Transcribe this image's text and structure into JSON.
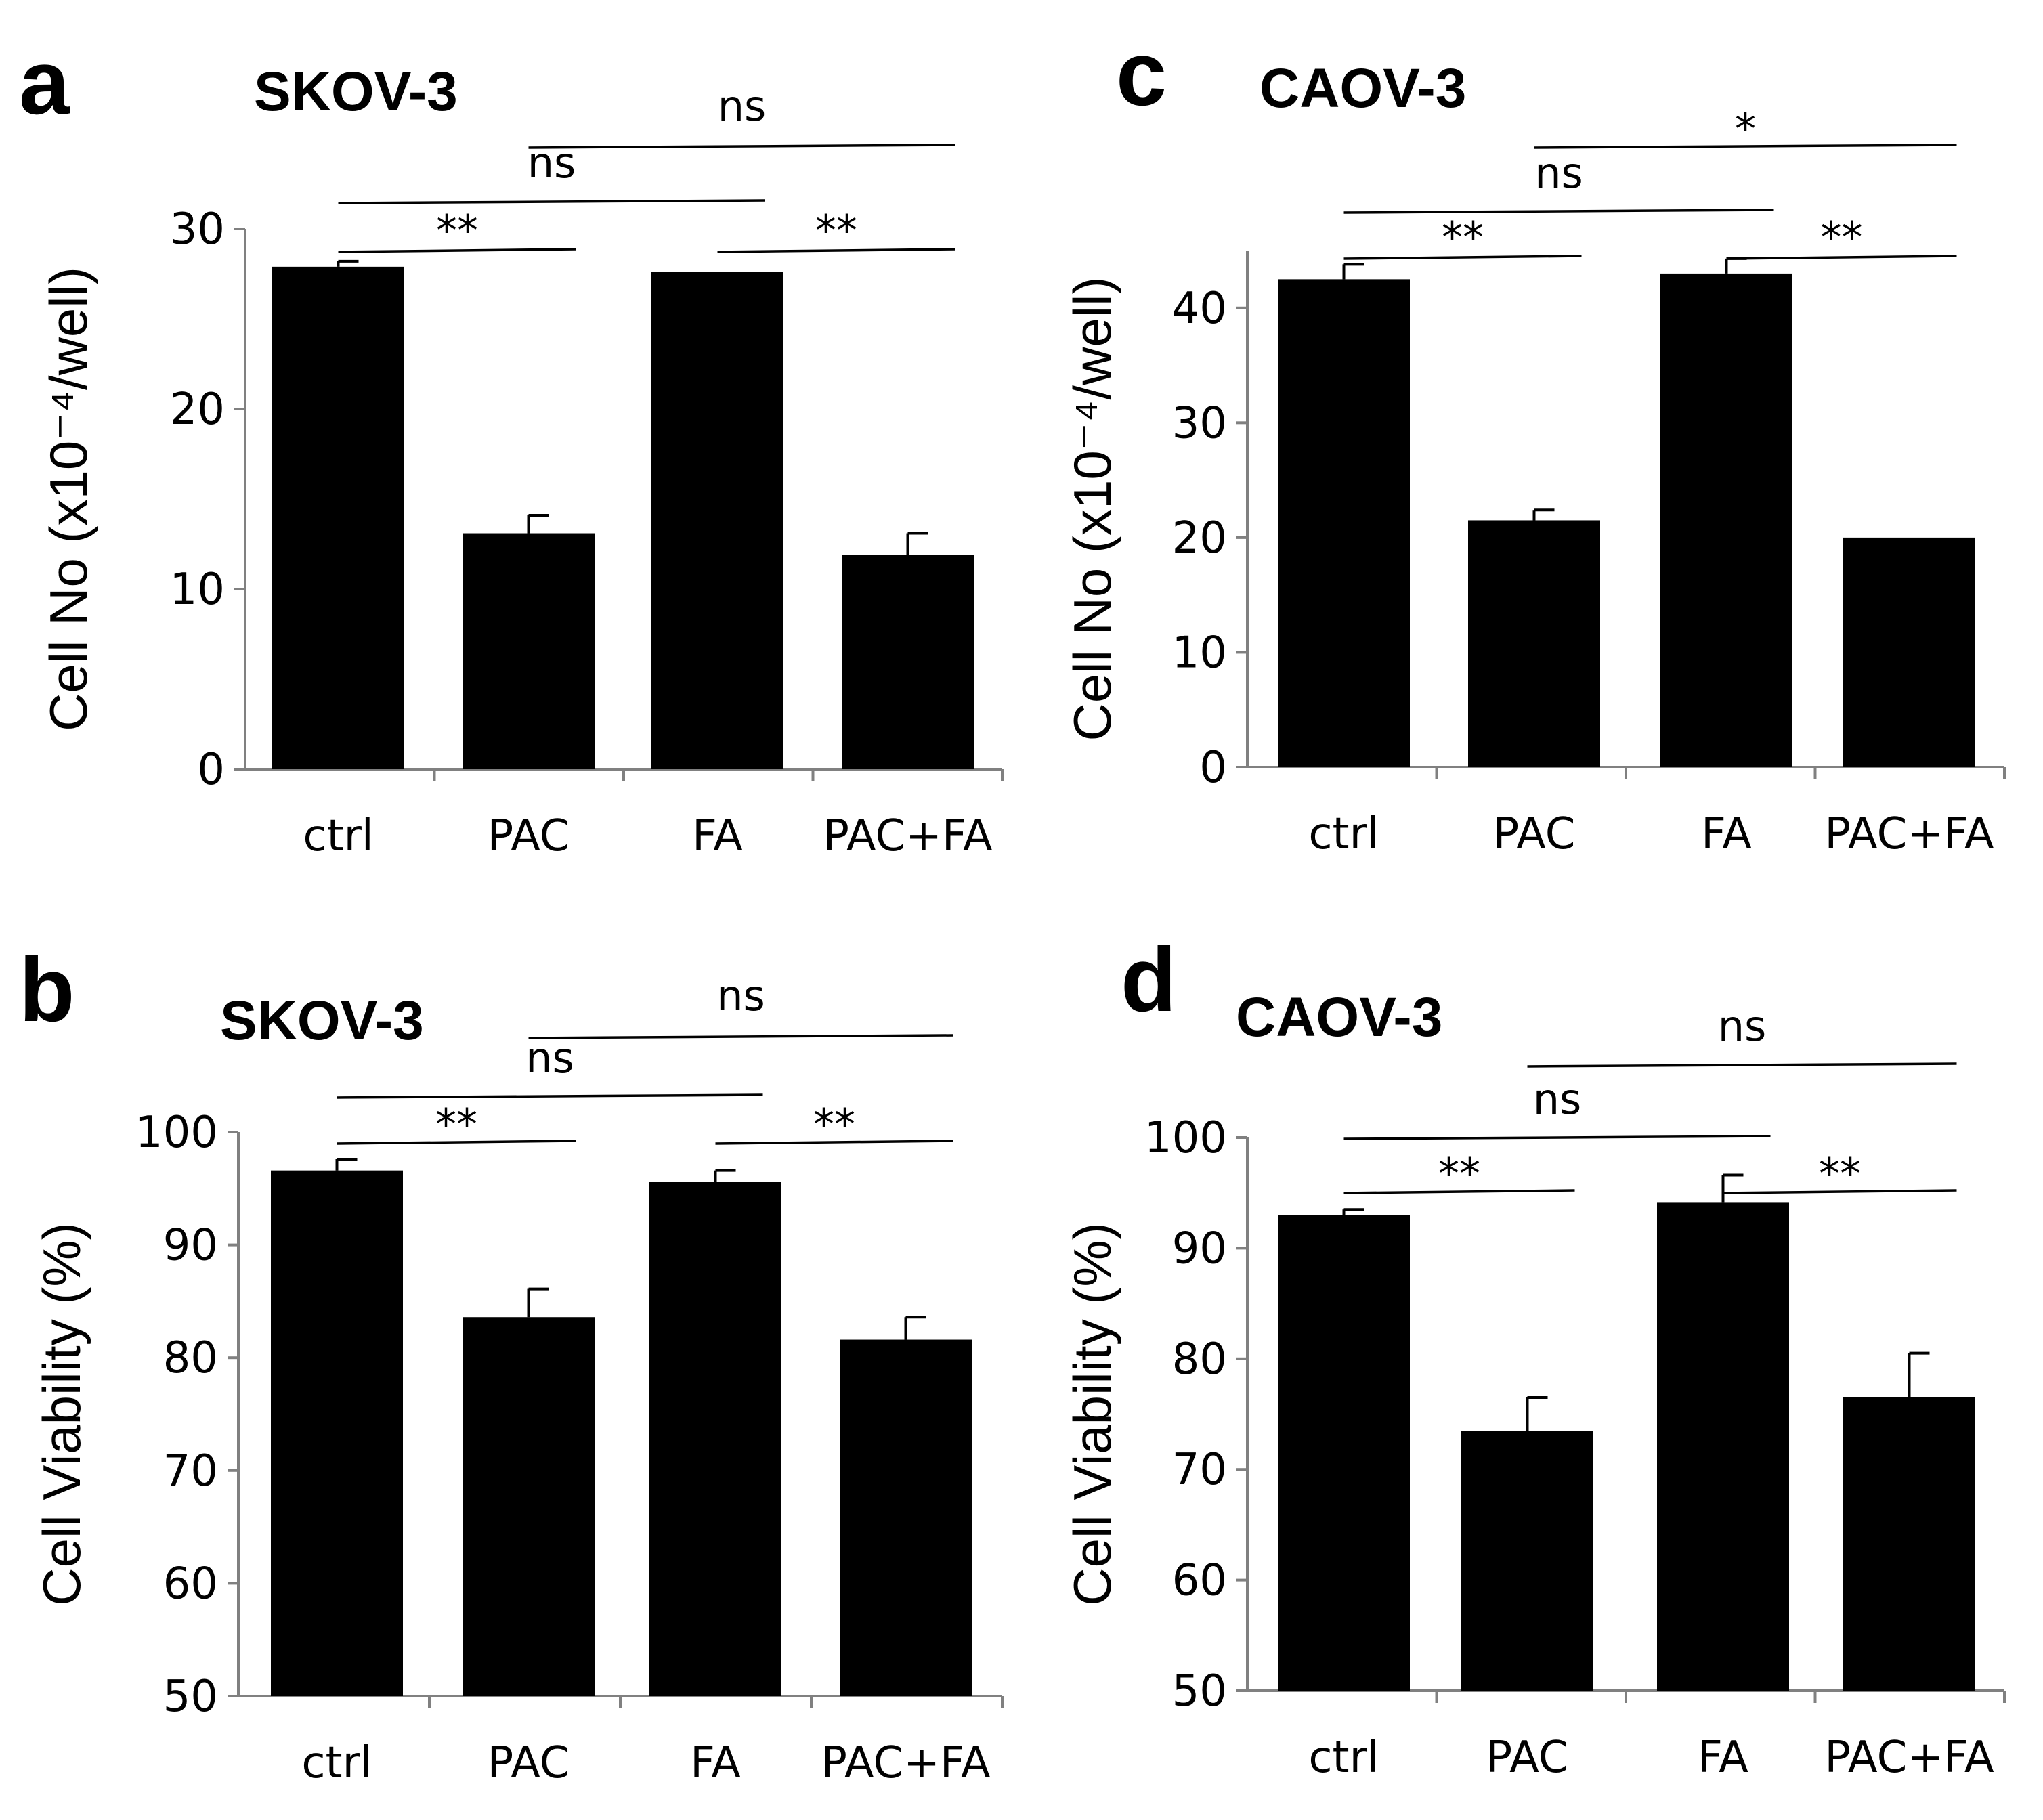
{
  "chart_data": [
    {
      "panel": "a",
      "title": "SKOV-3",
      "type": "bar",
      "ylabel": "Cell No (x10⁻⁴/well)",
      "categories": [
        "ctrl",
        "PAC",
        "FA",
        "PAC+FA"
      ],
      "values": [
        27.9,
        13.1,
        27.6,
        11.9
      ],
      "errors": [
        0.3,
        1.0,
        0,
        1.2
      ],
      "ylim": [
        0,
        30
      ],
      "yticks": [
        "0",
        "10",
        "20",
        "30"
      ],
      "significance": [
        {
          "from": 0,
          "to": 1,
          "label": "**",
          "level": 1
        },
        {
          "from": 2,
          "to": 3,
          "label": "**",
          "level": 1
        },
        {
          "from": 0,
          "to": 2,
          "label": "ns",
          "level": 2
        },
        {
          "from": 1,
          "to": 3,
          "label": "ns",
          "level": 3
        }
      ]
    },
    {
      "panel": "c",
      "title": "CAOV-3",
      "type": "bar",
      "ylabel": "Cell No (x10⁻⁴/well)",
      "categories": [
        "ctrl",
        "PAC",
        "FA",
        "PAC+FA"
      ],
      "values": [
        42.5,
        21.5,
        43.0,
        20.0
      ],
      "errors": [
        1.3,
        0.9,
        1.3,
        0
      ],
      "ylim": [
        0,
        45
      ],
      "yticks": [
        "0",
        "10",
        "20",
        "30",
        "40"
      ],
      "significance": [
        {
          "from": 0,
          "to": 1,
          "label": "**",
          "level": 1
        },
        {
          "from": 2,
          "to": 3,
          "label": "**",
          "level": 1
        },
        {
          "from": 0,
          "to": 2,
          "label": "ns",
          "level": 2
        },
        {
          "from": 1,
          "to": 3,
          "label": "*",
          "level": 3
        }
      ]
    },
    {
      "panel": "b",
      "title": "SKOV-3",
      "type": "bar",
      "ylabel": "Cell Viability   (%)",
      "categories": [
        "ctrl",
        "PAC",
        "FA",
        "PAC+FA"
      ],
      "values": [
        96.6,
        83.6,
        95.6,
        81.6
      ],
      "errors": [
        1.0,
        2.5,
        1.0,
        2.0
      ],
      "ylim": [
        50,
        100
      ],
      "yticks": [
        "50",
        "60",
        "70",
        "80",
        "90",
        "100"
      ],
      "significance": [
        {
          "from": 0,
          "to": 1,
          "label": "**",
          "level": 1
        },
        {
          "from": 2,
          "to": 3,
          "label": "**",
          "level": 1
        },
        {
          "from": 0,
          "to": 2,
          "label": "ns",
          "level": 2
        },
        {
          "from": 1,
          "to": 3,
          "label": "ns",
          "level": 3
        }
      ]
    },
    {
      "panel": "d",
      "title": "CAOV-3",
      "type": "bar",
      "ylabel": "Cell Viability   (%)",
      "categories": [
        "ctrl",
        "PAC",
        "FA",
        "PAC+FA"
      ],
      "values": [
        93.0,
        73.5,
        94.1,
        76.5
      ],
      "errors": [
        0.5,
        3.0,
        2.5,
        4.0
      ],
      "ylim": [
        50,
        100
      ],
      "yticks": [
        "50",
        "60",
        "70",
        "80",
        "90",
        "100"
      ],
      "significance": [
        {
          "from": 0,
          "to": 1,
          "label": "**",
          "level": 1
        },
        {
          "from": 2,
          "to": 3,
          "label": "**",
          "level": 1
        },
        {
          "from": 0,
          "to": 2,
          "label": "ns",
          "level": 2
        },
        {
          "from": 1,
          "to": 3,
          "label": "ns",
          "level": 3
        }
      ]
    }
  ]
}
